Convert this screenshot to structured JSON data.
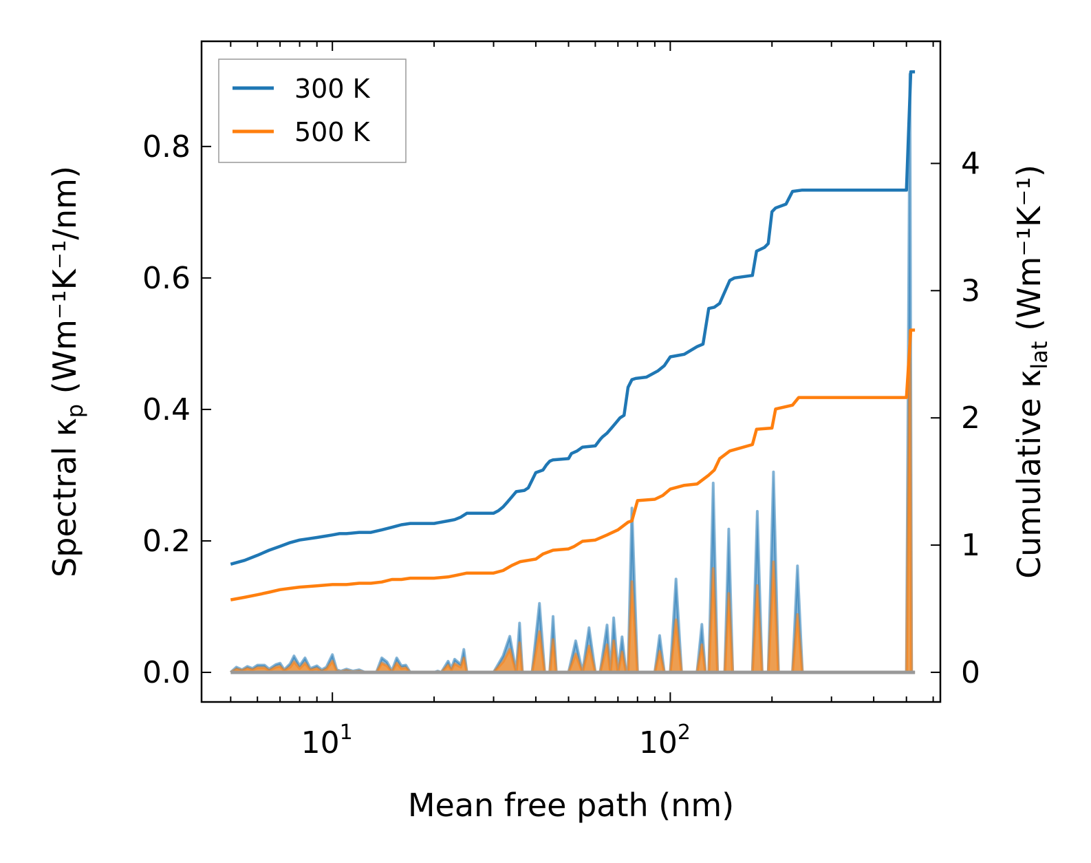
{
  "chart_data": {
    "type": "line",
    "title": "",
    "xlabel": "Mean free path (nm)",
    "xscale": "log",
    "xlim": [
      4.1,
      630
    ],
    "ylabel_left": {
      "prefix": "Spectral κ",
      "sub": "p",
      "suffix": " (Wm⁻¹K⁻¹/nm)"
    },
    "ylabel_right": {
      "prefix": "Cumulative κ",
      "sub": "lat",
      "suffix": " (Wm⁻¹K⁻¹)"
    },
    "ylim_left": [
      -0.045,
      0.96
    ],
    "ylim_right": [
      -0.233,
      4.96
    ],
    "x_ticks": [
      {
        "value": 10,
        "base": "10",
        "exp": "1"
      },
      {
        "value": 100,
        "base": "10",
        "exp": "2"
      }
    ],
    "y_ticks_left": [
      "0.0",
      "0.2",
      "0.4",
      "0.6",
      "0.8"
    ],
    "y_ticks_right": [
      "0",
      "1",
      "2",
      "3",
      "4"
    ],
    "legend": {
      "position": "top-left",
      "entries": [
        "300 K",
        "500 K"
      ]
    },
    "colors": {
      "s300": "#1f77b4",
      "s500": "#ff7f0e",
      "fill300": "#5e9ac6",
      "fill500": "#ff9a3a"
    },
    "cumulative_series": [
      {
        "name": "300 K",
        "x": [
          5.0,
          5.5,
          6.0,
          6.5,
          7.0,
          7.5,
          8.0,
          8.5,
          9.0,
          9.5,
          10.0,
          10.5,
          11.0,
          12.0,
          13.0,
          14.0,
          15.0,
          15.5,
          16.0,
          17.0,
          18.0,
          20.0,
          22.0,
          23.0,
          24.0,
          25.0,
          27.0,
          30.0,
          31.0,
          32.0,
          33.0,
          34.0,
          35.0,
          37.0,
          38.0,
          39.0,
          40.0,
          42.0,
          43.0,
          44.0,
          45.0,
          50.0,
          51.0,
          53.0,
          55.0,
          60.0,
          62.0,
          63.0,
          65.0,
          67.0,
          69.0,
          71.0,
          73.0,
          75.0,
          77.0,
          79.0,
          85.0,
          92.0,
          96.0,
          100.0,
          105.0,
          110.0,
          120.0,
          125.0,
          130.0,
          135.0,
          140.0,
          150.0,
          155.0,
          175.0,
          180.0,
          190.0,
          195.0,
          200.0,
          205.0,
          220.0,
          230.0,
          245.0,
          500.0,
          515.0,
          530.0
        ],
        "y": [
          0.85,
          0.88,
          0.92,
          0.96,
          0.99,
          1.02,
          1.04,
          1.05,
          1.06,
          1.07,
          1.08,
          1.09,
          1.09,
          1.1,
          1.1,
          1.12,
          1.14,
          1.15,
          1.16,
          1.17,
          1.17,
          1.17,
          1.19,
          1.2,
          1.22,
          1.25,
          1.25,
          1.25,
          1.27,
          1.3,
          1.34,
          1.38,
          1.42,
          1.43,
          1.45,
          1.51,
          1.57,
          1.59,
          1.63,
          1.66,
          1.67,
          1.68,
          1.72,
          1.74,
          1.77,
          1.78,
          1.83,
          1.85,
          1.88,
          1.92,
          1.96,
          2.0,
          2.02,
          2.24,
          2.3,
          2.31,
          2.32,
          2.37,
          2.41,
          2.48,
          2.49,
          2.5,
          2.56,
          2.58,
          2.86,
          2.87,
          2.9,
          3.08,
          3.1,
          3.12,
          3.31,
          3.34,
          3.37,
          3.62,
          3.65,
          3.68,
          3.78,
          3.79,
          3.79,
          4.72,
          4.72
        ]
      },
      {
        "name": "500 K",
        "x": [
          5.0,
          5.5,
          6.0,
          6.5,
          7.0,
          7.5,
          8.0,
          9.0,
          10.0,
          11.0,
          12.0,
          13.0,
          14.0,
          15.0,
          16.0,
          17.0,
          20.0,
          22.0,
          23.0,
          24.0,
          25.0,
          27.0,
          30.0,
          32.0,
          34.0,
          36.0,
          38.0,
          40.0,
          42.0,
          45.0,
          50.0,
          52.0,
          55.0,
          60.0,
          65.0,
          70.0,
          75.0,
          77.0,
          80.0,
          90.0,
          95.0,
          100.0,
          110.0,
          120.0,
          130.0,
          135.0,
          140.0,
          150.0,
          175.0,
          180.0,
          200.0,
          205.0,
          230.0,
          240.0,
          500.0,
          515.0,
          530.0
        ],
        "y": [
          0.57,
          0.59,
          0.61,
          0.63,
          0.65,
          0.66,
          0.67,
          0.68,
          0.69,
          0.69,
          0.7,
          0.7,
          0.71,
          0.73,
          0.73,
          0.74,
          0.74,
          0.75,
          0.76,
          0.77,
          0.78,
          0.78,
          0.78,
          0.8,
          0.84,
          0.87,
          0.88,
          0.89,
          0.93,
          0.96,
          0.97,
          0.99,
          1.03,
          1.04,
          1.08,
          1.12,
          1.18,
          1.19,
          1.35,
          1.36,
          1.39,
          1.44,
          1.47,
          1.48,
          1.55,
          1.59,
          1.68,
          1.74,
          1.79,
          1.91,
          1.92,
          2.07,
          2.1,
          2.16,
          2.16,
          2.69,
          2.69
        ]
      }
    ],
    "spectral_series": [
      {
        "name": "300 K",
        "x": [
          5.0,
          5.2,
          5.4,
          5.6,
          5.8,
          6.0,
          6.3,
          6.5,
          6.8,
          7.0,
          7.2,
          7.5,
          7.7,
          8.0,
          8.3,
          8.6,
          9.0,
          9.3,
          9.6,
          10.0,
          10.3,
          10.6,
          11.0,
          11.5,
          12.0,
          12.5,
          13.0,
          13.5,
          14.0,
          14.5,
          15.0,
          15.5,
          16.0,
          16.5,
          17.0,
          17.5,
          20.0,
          20.5,
          21.0,
          22.0,
          22.5,
          23.0,
          24.0,
          24.5,
          25.0,
          25.5,
          30.0,
          32.0,
          33.5,
          35.0,
          35.8,
          36.5,
          39.0,
          41.0,
          42.5,
          44.0,
          45.0,
          46.0,
          50.0,
          52.5,
          55.0,
          57.5,
          60.0,
          62.0,
          65.0,
          66.5,
          68.0,
          70.0,
          72.0,
          74.0,
          75.0,
          77.0,
          80.0,
          90.0,
          93.0,
          96.0,
          100.0,
          104.0,
          108.0,
          120.0,
          124.0,
          127.0,
          130.0,
          134.0,
          138.0,
          145.0,
          149.0,
          153.0,
          175.0,
          181.0,
          187.0,
          195.0,
          202.0,
          209.0,
          230.0,
          238.0,
          246.0,
          500.0,
          512.0,
          518.0,
          530.0
        ],
        "y": [
          0.0,
          0.008,
          0.004,
          0.009,
          0.006,
          0.011,
          0.011,
          0.005,
          0.012,
          0.014,
          0.004,
          0.013,
          0.025,
          0.01,
          0.022,
          0.006,
          0.01,
          0.004,
          0.008,
          0.027,
          0.004,
          0.002,
          0.005,
          0.002,
          0.004,
          0.0,
          0.0,
          0.0,
          0.022,
          0.016,
          0.002,
          0.022,
          0.01,
          0.011,
          0.0,
          0.0,
          0.0,
          0.002,
          0.0,
          0.017,
          0.006,
          0.02,
          0.012,
          0.035,
          0.0,
          0.0,
          0.0,
          0.025,
          0.055,
          0.0,
          0.075,
          0.0,
          0.0,
          0.105,
          0.0,
          0.0,
          0.085,
          0.0,
          0.0,
          0.048,
          0.0,
          0.068,
          0.0,
          0.0,
          0.072,
          0.0,
          0.083,
          0.0,
          0.054,
          0.0,
          0.0,
          0.25,
          0.0,
          0.0,
          0.056,
          0.0,
          0.0,
          0.142,
          0.0,
          0.0,
          0.073,
          0.0,
          0.0,
          0.288,
          0.0,
          0.0,
          0.218,
          0.0,
          0.0,
          0.245,
          0.0,
          0.0,
          0.305,
          0.0,
          0.0,
          0.162,
          0.0,
          0.0,
          0.91,
          0.0,
          0.0
        ]
      },
      {
        "name": "500 K",
        "x": [
          5.0,
          5.2,
          5.4,
          5.6,
          5.8,
          6.0,
          6.3,
          6.5,
          6.8,
          7.0,
          7.2,
          7.5,
          7.7,
          8.0,
          8.3,
          8.6,
          9.0,
          9.3,
          9.6,
          10.0,
          10.3,
          10.6,
          11.0,
          11.5,
          12.0,
          12.5,
          13.0,
          13.5,
          14.0,
          14.5,
          15.0,
          15.5,
          16.0,
          16.5,
          17.0,
          17.5,
          20.0,
          20.5,
          21.0,
          22.0,
          22.5,
          23.0,
          24.0,
          24.5,
          25.0,
          25.5,
          30.0,
          32.0,
          33.5,
          35.0,
          35.8,
          36.5,
          39.0,
          41.0,
          42.5,
          44.0,
          45.0,
          46.0,
          50.0,
          52.5,
          55.0,
          57.5,
          60.0,
          62.0,
          65.0,
          66.5,
          68.0,
          70.0,
          72.0,
          74.0,
          75.0,
          77.0,
          80.0,
          90.0,
          93.0,
          96.0,
          100.0,
          104.0,
          108.0,
          120.0,
          124.0,
          127.0,
          130.0,
          134.0,
          138.0,
          145.0,
          149.0,
          153.0,
          175.0,
          181.0,
          187.0,
          195.0,
          202.0,
          209.0,
          230.0,
          238.0,
          246.0,
          500.0,
          512.0,
          518.0,
          530.0
        ],
        "y": [
          0.0,
          0.005,
          0.003,
          0.006,
          0.004,
          0.007,
          0.007,
          0.003,
          0.008,
          0.009,
          0.003,
          0.008,
          0.016,
          0.006,
          0.014,
          0.004,
          0.006,
          0.002,
          0.005,
          0.017,
          0.002,
          0.001,
          0.003,
          0.001,
          0.002,
          0.0,
          0.0,
          0.0,
          0.014,
          0.01,
          0.001,
          0.014,
          0.006,
          0.007,
          0.0,
          0.0,
          0.0,
          0.001,
          0.0,
          0.011,
          0.004,
          0.013,
          0.008,
          0.022,
          0.0,
          0.0,
          0.0,
          0.016,
          0.035,
          0.0,
          0.045,
          0.0,
          0.0,
          0.062,
          0.0,
          0.0,
          0.05,
          0.0,
          0.0,
          0.028,
          0.0,
          0.04,
          0.0,
          0.0,
          0.042,
          0.0,
          0.048,
          0.0,
          0.031,
          0.0,
          0.0,
          0.138,
          0.0,
          0.0,
          0.032,
          0.0,
          0.0,
          0.08,
          0.0,
          0.0,
          0.042,
          0.0,
          0.0,
          0.158,
          0.0,
          0.0,
          0.12,
          0.0,
          0.0,
          0.132,
          0.0,
          0.0,
          0.168,
          0.0,
          0.0,
          0.088,
          0.0,
          0.0,
          0.52,
          0.0,
          0.0
        ]
      }
    ]
  }
}
